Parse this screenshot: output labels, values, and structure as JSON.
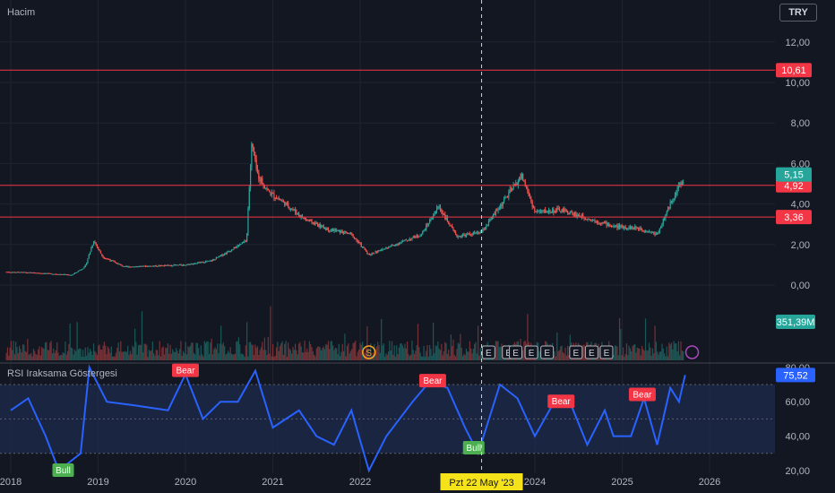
{
  "header": {
    "volume_label": "Hacim",
    "currency": "TRY"
  },
  "indicator": {
    "title": "RSI Iraksama Göstergesi"
  },
  "crosshair": {
    "date_label": "Pzt 22 May '23"
  },
  "colors": {
    "background": "#131722",
    "up": "#26a69a",
    "down": "#ef5350",
    "rsi_line": "#2962ff",
    "rsi_band": "#1e2d4f",
    "hline": "#f23645",
    "bull": "#4caf50",
    "bear": "#f23645",
    "crosshair": "#f5e21a"
  },
  "chart_data": [
    {
      "type": "candlestick",
      "price_axis": {
        "ticks": [
          "12,00",
          "10,00",
          "8,00",
          "6,00",
          "4,00",
          "2,00",
          "0,00"
        ],
        "tick_values": [
          12,
          10,
          8,
          6,
          4,
          2,
          0
        ]
      },
      "time_axis": {
        "ticks": [
          "2018",
          "2019",
          "2020",
          "2021",
          "2022",
          "2024",
          "2025",
          "2026"
        ],
        "tick_years": [
          2018,
          2019,
          2020,
          2021,
          2022,
          2024,
          2025,
          2026
        ]
      },
      "horizontal_lines": [
        {
          "value": 10.61,
          "label": "10,61"
        },
        {
          "value": 4.92,
          "label": "4,92"
        },
        {
          "value": 3.36,
          "label": "3,36"
        }
      ],
      "last_price": {
        "value": 5.15,
        "label": "5,15"
      },
      "volume_last_label": "351,39M",
      "price_path": [
        [
          2017.95,
          0.65
        ],
        [
          2018.3,
          0.6
        ],
        [
          2018.7,
          0.5
        ],
        [
          2018.85,
          0.9
        ],
        [
          2018.95,
          2.2
        ],
        [
          2019.05,
          1.4
        ],
        [
          2019.3,
          0.9
        ],
        [
          2019.7,
          0.95
        ],
        [
          2020.0,
          1.0
        ],
        [
          2020.3,
          1.2
        ],
        [
          2020.55,
          1.8
        ],
        [
          2020.7,
          2.2
        ],
        [
          2020.72,
          4.0
        ],
        [
          2020.76,
          7.0
        ],
        [
          2020.82,
          5.5
        ],
        [
          2020.95,
          4.6
        ],
        [
          2021.15,
          4.0
        ],
        [
          2021.35,
          3.3
        ],
        [
          2021.6,
          2.8
        ],
        [
          2021.9,
          2.5
        ],
        [
          2022.1,
          1.5
        ],
        [
          2022.4,
          2.0
        ],
        [
          2022.7,
          2.5
        ],
        [
          2022.9,
          3.9
        ],
        [
          2023.1,
          2.4
        ],
        [
          2023.39,
          2.6
        ],
        [
          2023.7,
          4.5
        ],
        [
          2023.85,
          5.4
        ],
        [
          2024.0,
          3.6
        ],
        [
          2024.3,
          3.7
        ],
        [
          2024.6,
          3.3
        ],
        [
          2024.9,
          2.9
        ],
        [
          2025.2,
          2.8
        ],
        [
          2025.4,
          2.5
        ],
        [
          2025.6,
          4.5
        ],
        [
          2025.7,
          5.15
        ]
      ],
      "markers": [
        "S",
        "E",
        "E",
        "E",
        "E",
        "E",
        "E",
        "E",
        "E"
      ],
      "marker_years": [
        2022.1,
        2023.47,
        2023.7,
        2023.78,
        2023.96,
        2024.14,
        2024.47,
        2024.65,
        2024.82
      ]
    },
    {
      "type": "line",
      "name": "RSI Iraksama Göstergesi",
      "y_axis": {
        "ticks": [
          "80,00",
          "60,00",
          "40,00",
          "20,00"
        ],
        "tick_values": [
          80,
          60,
          40,
          20
        ]
      },
      "band": [
        30,
        70
      ],
      "last_value": {
        "value": 75.52,
        "label": "75,52"
      },
      "labels": [
        {
          "text": "Bear",
          "year": 2020.0,
          "value": 78
        },
        {
          "text": "Bull",
          "year": 2018.6,
          "value": 20
        },
        {
          "text": "Bear",
          "year": 2022.83,
          "value": 72
        },
        {
          "text": "Bull",
          "year": 2023.3,
          "value": 33
        },
        {
          "text": "Bear",
          "year": 2024.3,
          "value": 60
        },
        {
          "text": "Bear",
          "year": 2025.23,
          "value": 64
        }
      ],
      "series": [
        [
          2018.0,
          55
        ],
        [
          2018.2,
          62
        ],
        [
          2018.4,
          40
        ],
        [
          2018.55,
          20
        ],
        [
          2018.8,
          30
        ],
        [
          2018.9,
          80
        ],
        [
          2019.1,
          60
        ],
        [
          2019.4,
          58
        ],
        [
          2019.8,
          55
        ],
        [
          2020.0,
          76
        ],
        [
          2020.2,
          50
        ],
        [
          2020.4,
          60
        ],
        [
          2020.6,
          60
        ],
        [
          2020.8,
          78
        ],
        [
          2021.0,
          45
        ],
        [
          2021.3,
          55
        ],
        [
          2021.5,
          40
        ],
        [
          2021.7,
          35
        ],
        [
          2021.9,
          55
        ],
        [
          2022.1,
          20
        ],
        [
          2022.3,
          40
        ],
        [
          2022.6,
          60
        ],
        [
          2022.8,
          72
        ],
        [
          2023.0,
          68
        ],
        [
          2023.2,
          45
        ],
        [
          2023.35,
          30
        ],
        [
          2023.6,
          70
        ],
        [
          2023.8,
          62
        ],
        [
          2024.0,
          40
        ],
        [
          2024.2,
          58
        ],
        [
          2024.4,
          60
        ],
        [
          2024.6,
          35
        ],
        [
          2024.8,
          55
        ],
        [
          2024.9,
          40
        ],
        [
          2025.1,
          40
        ],
        [
          2025.25,
          62
        ],
        [
          2025.4,
          35
        ],
        [
          2025.55,
          68
        ],
        [
          2025.65,
          60
        ],
        [
          2025.72,
          75.52
        ]
      ]
    }
  ]
}
